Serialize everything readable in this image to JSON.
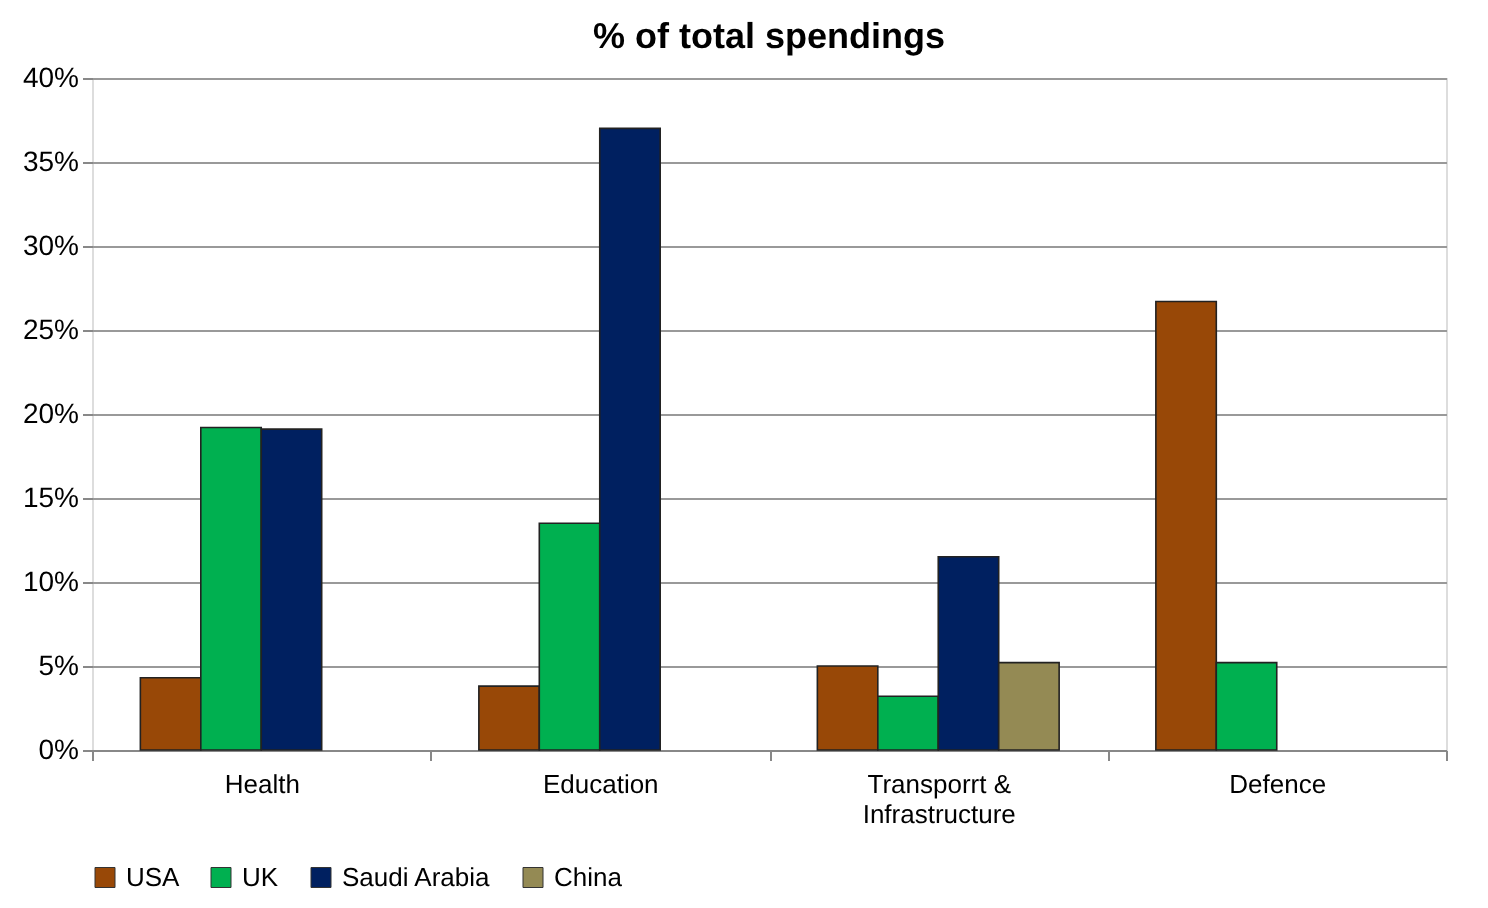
{
  "chart_data": {
    "type": "bar",
    "title": "% of  total spendings",
    "categories": [
      "Health",
      "Education",
      "Transporrt & Infrastructure",
      "Defence"
    ],
    "series": [
      {
        "name": "USA",
        "color": "#984807",
        "values": [
          4.3,
          3.8,
          5.0,
          26.7
        ]
      },
      {
        "name": "UK",
        "color": "#00b050",
        "values": [
          19.2,
          13.5,
          3.2,
          5.2
        ]
      },
      {
        "name": "Saudi Arabia",
        "color": "#002060",
        "values": [
          19.1,
          37.0,
          11.5,
          null
        ]
      },
      {
        "name": "China",
        "color": "#948a54",
        "values": [
          null,
          null,
          5.2,
          null
        ]
      }
    ],
    "ylim": [
      0,
      40
    ],
    "yticks": [
      {
        "value": 0,
        "label": "0%"
      },
      {
        "value": 5,
        "label": "5%"
      },
      {
        "value": 10,
        "label": "10%"
      },
      {
        "value": 15,
        "label": "15%"
      },
      {
        "value": 20,
        "label": "20%"
      },
      {
        "value": 25,
        "label": "25%"
      },
      {
        "value": 30,
        "label": "30%"
      },
      {
        "value": 35,
        "label": "35%"
      },
      {
        "value": 40,
        "label": "40%"
      }
    ],
    "grid": "y",
    "legend": "bottom"
  }
}
